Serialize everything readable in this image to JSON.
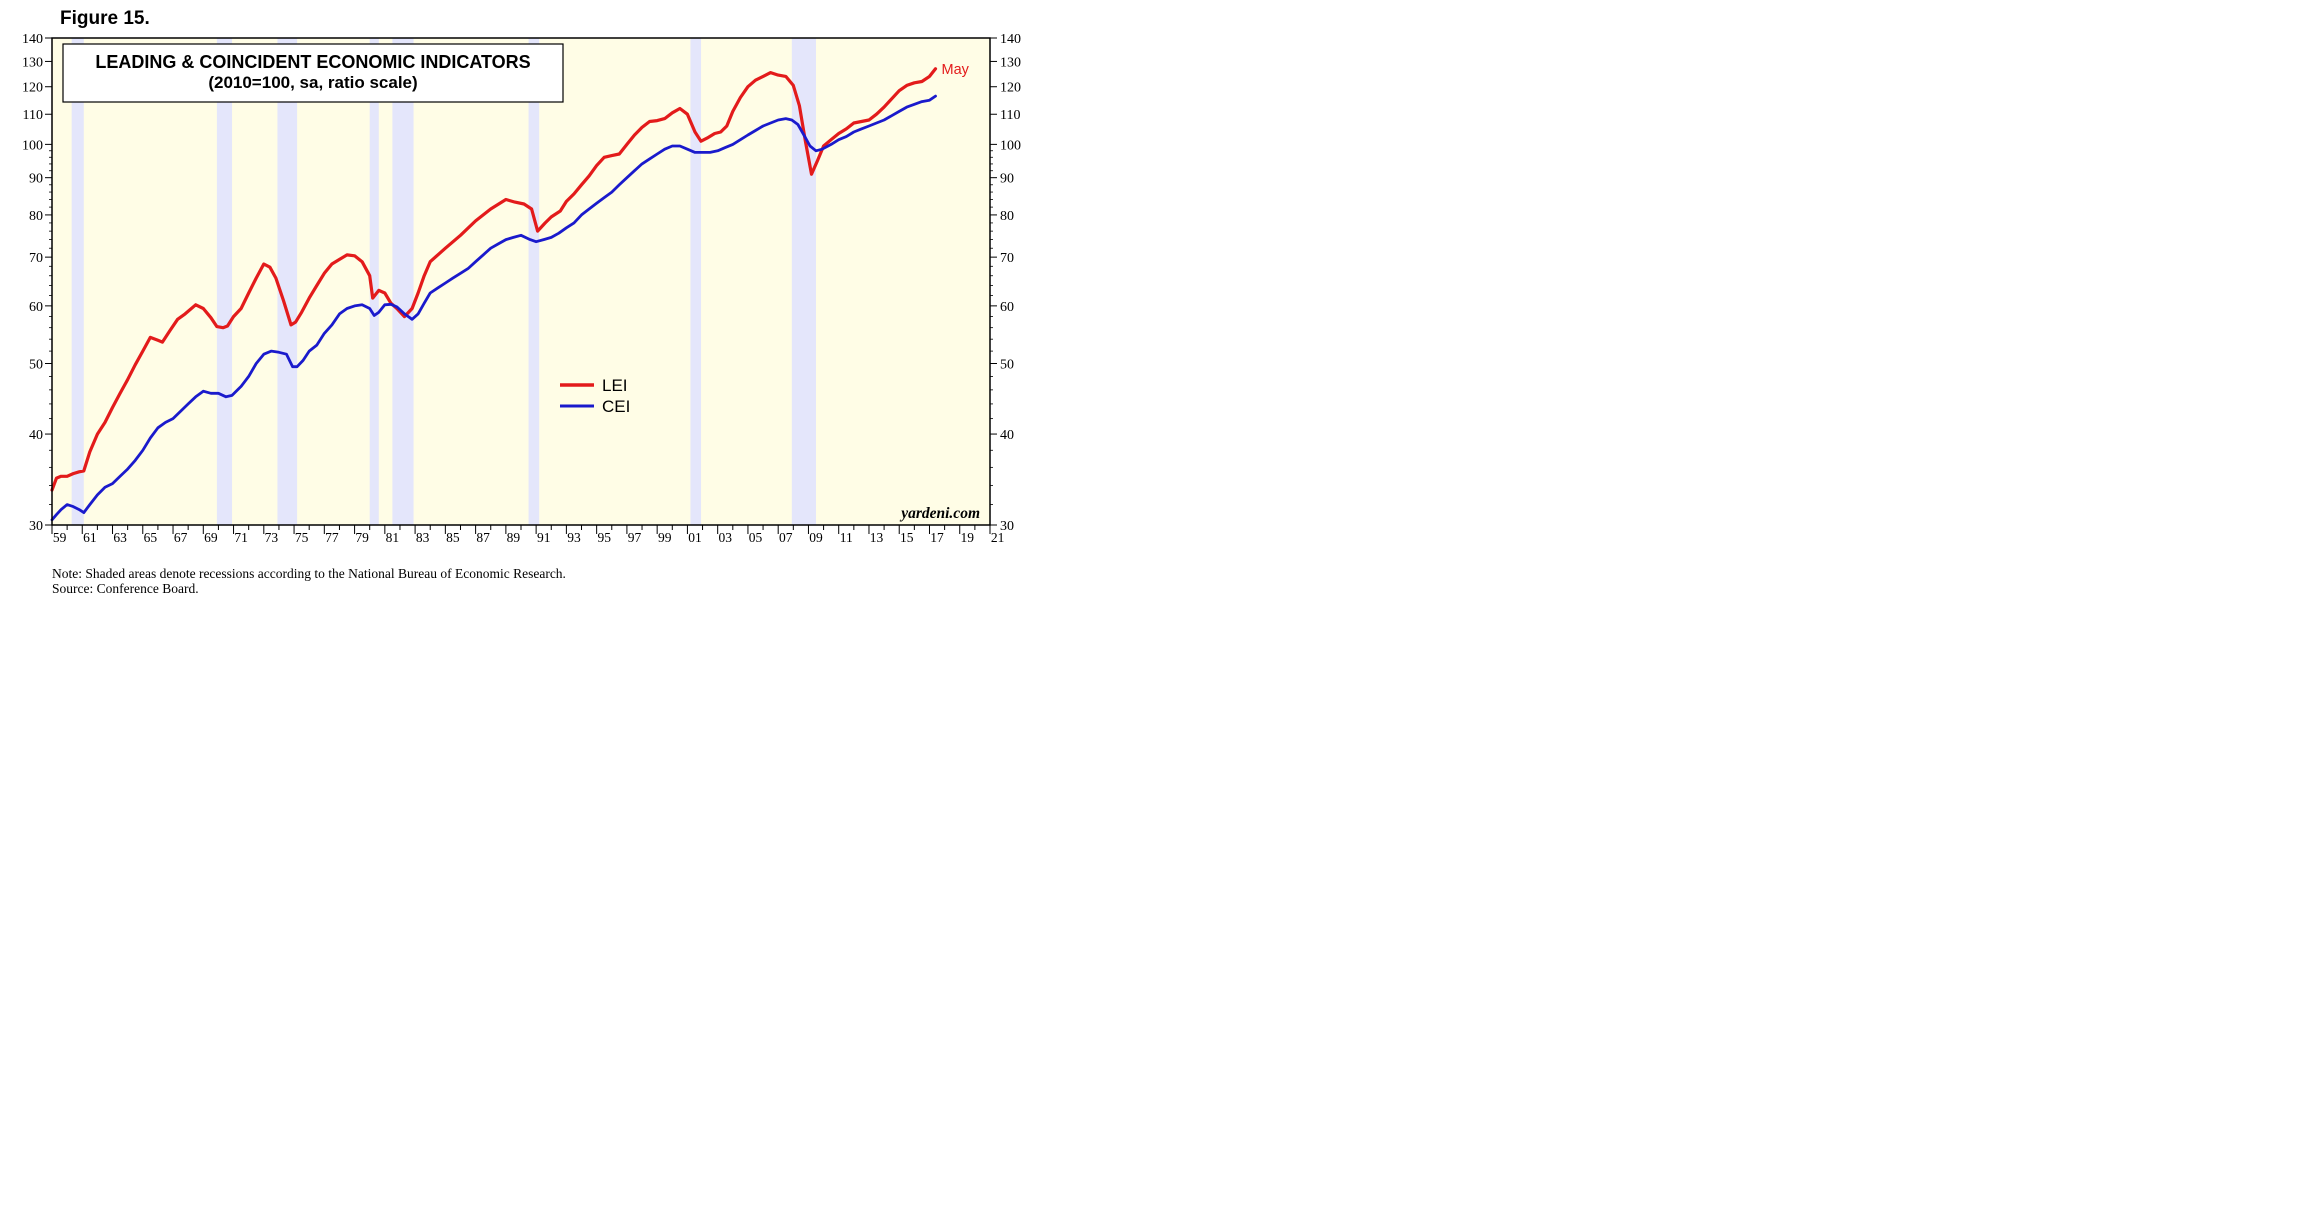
{
  "figure_label": "Figure 15.",
  "notes": {
    "line1": "Note: Shaded areas denote recessions according to the National Bureau of Economic Research.",
    "line2": "Source: Conference Board."
  },
  "chart_data": {
    "type": "line",
    "title": "LEADING & COINCIDENT ECONOMIC INDICATORS",
    "subtitle": "(2010=100, sa, ratio scale)",
    "y_scale": "log",
    "ylim": [
      30,
      140
    ],
    "xlim": [
      1959,
      2021
    ],
    "y_ticks": [
      30,
      40,
      50,
      60,
      70,
      80,
      90,
      100,
      110,
      120,
      130,
      140
    ],
    "x_tick_labels": [
      "59",
      "61",
      "63",
      "65",
      "67",
      "69",
      "71",
      "73",
      "75",
      "77",
      "79",
      "81",
      "83",
      "85",
      "87",
      "89",
      "91",
      "93",
      "95",
      "97",
      "99",
      "01",
      "03",
      "05",
      "07",
      "09",
      "11",
      "13",
      "15",
      "17",
      "19",
      "21"
    ],
    "x_tick_years": [
      1959,
      1961,
      1963,
      1965,
      1967,
      1969,
      1971,
      1973,
      1975,
      1977,
      1979,
      1981,
      1983,
      1985,
      1987,
      1989,
      1991,
      1993,
      1995,
      1997,
      1999,
      2001,
      2003,
      2005,
      2007,
      2009,
      2011,
      2013,
      2015,
      2017,
      2019,
      2021
    ],
    "end_annotation": "May",
    "watermark": "yardeni.com",
    "recessions": [
      [
        1960.3,
        1961.1
      ],
      [
        1969.9,
        1970.9
      ],
      [
        1973.9,
        1975.2
      ],
      [
        1980.0,
        1980.6
      ],
      [
        1981.5,
        1982.9
      ],
      [
        1990.5,
        1991.2
      ],
      [
        2001.2,
        2001.9
      ],
      [
        2007.9,
        2009.5
      ]
    ],
    "colors": {
      "background": "#fffde6",
      "recession": "#e4e6fb",
      "LEI": "#e31b1b",
      "CEI": "#1a1acc"
    },
    "legend": {
      "placement": "center"
    },
    "series": [
      {
        "name": "LEI",
        "x": [
          1959.0,
          1959.3,
          1959.6,
          1960.0,
          1960.4,
          1960.8,
          1961.1,
          1961.5,
          1962.0,
          1962.5,
          1963.0,
          1963.5,
          1964.0,
          1964.5,
          1965.0,
          1965.5,
          1966.0,
          1966.3,
          1966.8,
          1967.3,
          1967.8,
          1968.5,
          1969.0,
          1969.5,
          1969.9,
          1970.3,
          1970.6,
          1971.0,
          1971.5,
          1972.0,
          1972.5,
          1973.0,
          1973.4,
          1973.8,
          1974.3,
          1974.8,
          1975.1,
          1975.5,
          1976.0,
          1976.5,
          1977.0,
          1977.5,
          1978.0,
          1978.5,
          1979.0,
          1979.5,
          1980.0,
          1980.2,
          1980.6,
          1981.0,
          1981.4,
          1981.8,
          1982.3,
          1982.8,
          1983.2,
          1983.6,
          1984.0,
          1984.5,
          1985.0,
          1986.0,
          1987.0,
          1988.0,
          1989.0,
          1989.6,
          1990.2,
          1990.7,
          1991.1,
          1991.6,
          1992.0,
          1992.6,
          1993.0,
          1993.5,
          1994.0,
          1994.5,
          1995.0,
          1995.5,
          1996.0,
          1996.5,
          1997.0,
          1997.5,
          1998.0,
          1998.5,
          1999.0,
          1999.5,
          2000.0,
          2000.5,
          2001.0,
          2001.5,
          2001.9,
          2002.3,
          2002.8,
          2003.2,
          2003.6,
          2004.0,
          2004.5,
          2005.0,
          2005.5,
          2006.0,
          2006.5,
          2007.0,
          2007.5,
          2008.0,
          2008.4,
          2008.8,
          2009.2,
          2009.6,
          2010.0,
          2010.5,
          2011.0,
          2011.5,
          2012.0,
          2012.5,
          2013.0,
          2013.5,
          2014.0,
          2014.5,
          2015.0,
          2015.5,
          2016.0,
          2016.5,
          2017.0,
          2017.4
        ],
        "values": [
          33.5,
          34.8,
          35.0,
          35.0,
          35.3,
          35.5,
          35.6,
          37.8,
          40.0,
          41.5,
          43.5,
          45.5,
          47.5,
          49.8,
          52.0,
          54.3,
          53.8,
          53.5,
          55.5,
          57.5,
          58.5,
          60.2,
          59.5,
          57.8,
          56.2,
          56.0,
          56.3,
          58.0,
          59.5,
          62.5,
          65.5,
          68.5,
          67.8,
          65.5,
          61.0,
          56.5,
          57.0,
          58.8,
          61.5,
          64.0,
          66.5,
          68.5,
          69.5,
          70.5,
          70.3,
          69.0,
          66.0,
          61.5,
          63.0,
          62.5,
          60.5,
          59.5,
          58.0,
          59.5,
          62.5,
          66.0,
          69.0,
          70.5,
          72.0,
          75.0,
          78.5,
          81.5,
          84.0,
          83.3,
          82.8,
          81.5,
          76.0,
          78.0,
          79.5,
          81.0,
          83.5,
          85.5,
          88.0,
          90.5,
          93.5,
          96.0,
          96.5,
          97.0,
          100.0,
          103.0,
          105.5,
          107.5,
          107.8,
          108.5,
          110.5,
          112.0,
          110.0,
          104.0,
          101.0,
          102.0,
          103.5,
          104.0,
          106.0,
          111.0,
          116.0,
          120.0,
          122.5,
          124.0,
          125.5,
          124.5,
          124.0,
          120.5,
          113.0,
          101.0,
          91.0,
          95.0,
          99.5,
          101.5,
          103.5,
          105.0,
          107.0,
          107.5,
          108.0,
          110.0,
          112.5,
          115.5,
          118.5,
          120.5,
          121.5,
          122.0,
          124.0,
          127.0
        ]
      },
      {
        "name": "CEI",
        "x": [
          1959.0,
          1959.3,
          1959.6,
          1960.0,
          1960.4,
          1960.8,
          1961.1,
          1961.5,
          1962.0,
          1962.5,
          1963.0,
          1963.5,
          1964.0,
          1964.5,
          1965.0,
          1965.5,
          1966.0,
          1966.5,
          1967.0,
          1967.5,
          1968.0,
          1968.5,
          1969.0,
          1969.5,
          1970.0,
          1970.5,
          1970.9,
          1971.5,
          1972.0,
          1972.5,
          1973.0,
          1973.5,
          1974.0,
          1974.5,
          1974.9,
          1975.2,
          1975.6,
          1976.0,
          1976.5,
          1977.0,
          1977.5,
          1978.0,
          1978.5,
          1979.0,
          1979.5,
          1980.0,
          1980.3,
          1980.6,
          1981.0,
          1981.4,
          1981.8,
          1982.3,
          1982.8,
          1983.2,
          1983.6,
          1984.0,
          1984.5,
          1985.0,
          1985.5,
          1986.0,
          1986.5,
          1987.0,
          1987.5,
          1988.0,
          1988.5,
          1989.0,
          1989.5,
          1990.0,
          1990.6,
          1991.0,
          1991.5,
          1992.0,
          1992.5,
          1993.0,
          1993.5,
          1994.0,
          1994.5,
          1995.0,
          1995.5,
          1996.0,
          1996.5,
          1997.0,
          1997.5,
          1998.0,
          1998.5,
          1999.0,
          1999.5,
          2000.0,
          2000.5,
          2001.0,
          2001.5,
          2002.0,
          2002.5,
          2003.0,
          2003.5,
          2004.0,
          2004.5,
          2005.0,
          2005.5,
          2006.0,
          2006.5,
          2007.0,
          2007.5,
          2007.9,
          2008.3,
          2008.7,
          2009.1,
          2009.5,
          2009.9,
          2010.5,
          2011.0,
          2011.5,
          2012.0,
          2012.5,
          2013.0,
          2013.5,
          2014.0,
          2014.5,
          2015.0,
          2015.5,
          2016.0,
          2016.5,
          2017.0,
          2017.4
        ],
        "values": [
          30.5,
          31.0,
          31.5,
          32.0,
          31.8,
          31.5,
          31.2,
          32.0,
          33.0,
          33.8,
          34.2,
          35.0,
          35.8,
          36.8,
          38.0,
          39.5,
          40.8,
          41.5,
          42.0,
          43.0,
          44.0,
          45.0,
          45.8,
          45.5,
          45.5,
          45.0,
          45.2,
          46.5,
          48.0,
          50.0,
          51.5,
          52.0,
          51.8,
          51.5,
          49.5,
          49.5,
          50.5,
          52.0,
          53.0,
          55.0,
          56.5,
          58.5,
          59.5,
          60.0,
          60.2,
          59.5,
          58.2,
          58.8,
          60.2,
          60.3,
          59.8,
          58.5,
          57.5,
          58.5,
          60.5,
          62.5,
          63.5,
          64.5,
          65.5,
          66.5,
          67.5,
          69.0,
          70.5,
          72.0,
          73.0,
          74.0,
          74.5,
          75.0,
          74.0,
          73.5,
          74.0,
          74.5,
          75.5,
          76.8,
          78.0,
          80.0,
          81.5,
          83.0,
          84.5,
          86.0,
          88.0,
          90.0,
          92.0,
          94.0,
          95.5,
          97.0,
          98.5,
          99.5,
          99.5,
          98.5,
          97.5,
          97.5,
          97.5,
          98.0,
          99.0,
          100.0,
          101.5,
          103.0,
          104.5,
          106.0,
          107.0,
          108.0,
          108.5,
          108.0,
          106.5,
          103.0,
          99.5,
          98.0,
          98.5,
          100.0,
          101.5,
          102.5,
          104.0,
          105.0,
          106.0,
          107.0,
          108.0,
          109.5,
          111.0,
          112.5,
          113.5,
          114.5,
          115.0,
          116.5
        ]
      }
    ]
  }
}
